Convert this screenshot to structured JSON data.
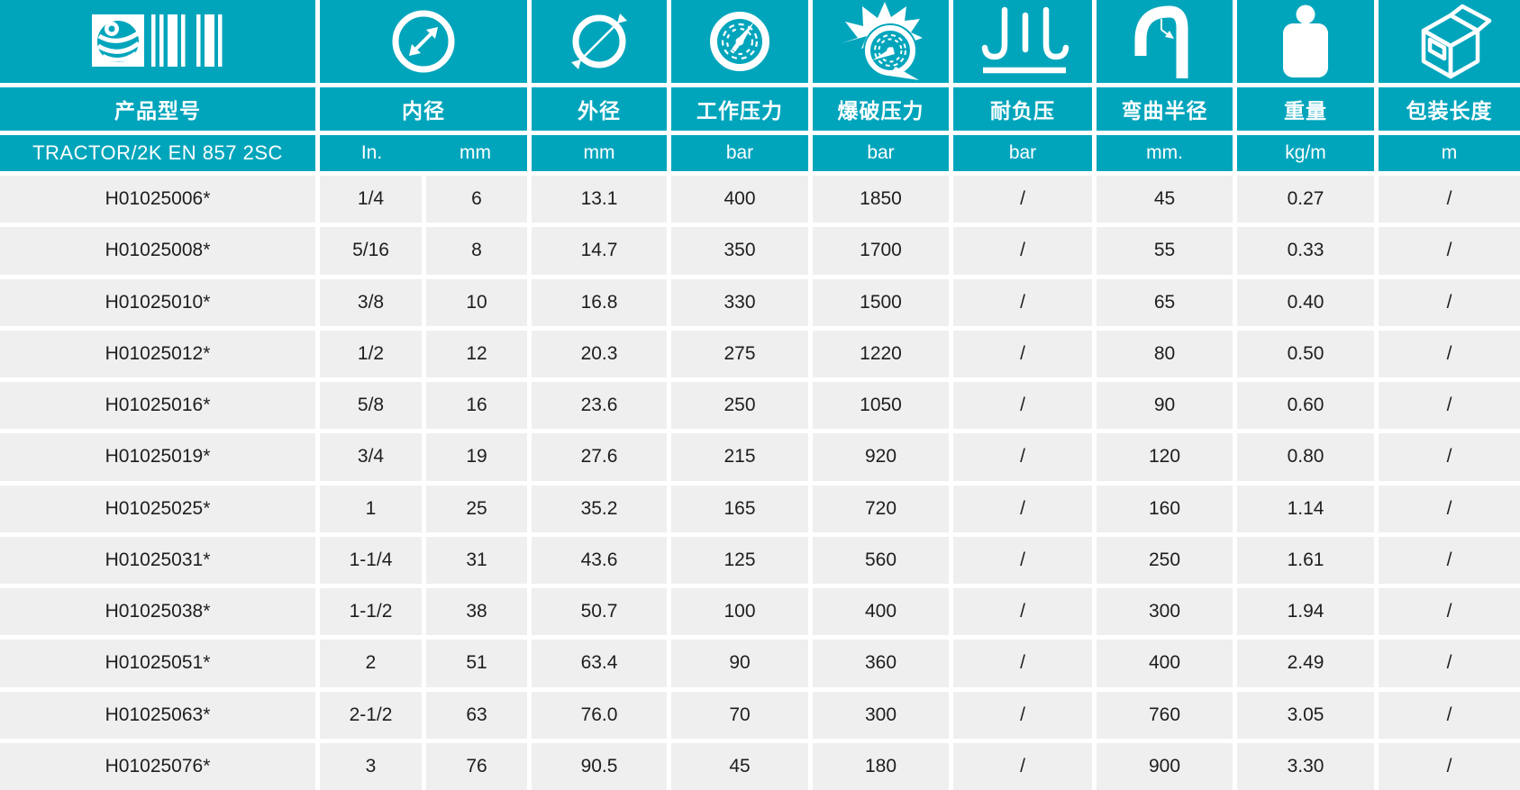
{
  "table": {
    "series_name": "TRACTOR/2K EN 857 2SC",
    "columns": [
      {
        "key": "model",
        "label": "产品型号",
        "icon": "brand-barcode-icon"
      },
      {
        "key": "inner_diameter",
        "label": "内径",
        "units": [
          "In.",
          "mm"
        ],
        "icon": "inner-diameter-icon"
      },
      {
        "key": "outer_diameter",
        "label": "外径",
        "unit": "mm",
        "icon": "outer-diameter-icon"
      },
      {
        "key": "working_pressure",
        "label": "工作压力",
        "unit": "bar",
        "icon": "pressure-gauge-icon"
      },
      {
        "key": "burst_pressure",
        "label": "爆破压力",
        "unit": "bar",
        "icon": "burst-gauge-icon"
      },
      {
        "key": "vacuum_resistance",
        "label": "耐负压",
        "unit": "bar",
        "icon": "vacuum-icon"
      },
      {
        "key": "bend_radius",
        "label": "弯曲半径",
        "unit": "mm.",
        "icon": "bend-radius-icon"
      },
      {
        "key": "weight",
        "label": "重量",
        "unit": "kg/m",
        "icon": "weight-icon"
      },
      {
        "key": "package_length",
        "label": "包装长度",
        "unit": "m",
        "icon": "package-box-icon"
      }
    ],
    "rows": [
      [
        "H01025006*",
        "1/4",
        "6",
        "13.1",
        "400",
        "1850",
        "/",
        "45",
        "0.27",
        "/"
      ],
      [
        "H01025008*",
        "5/16",
        "8",
        "14.7",
        "350",
        "1700",
        "/",
        "55",
        "0.33",
        "/"
      ],
      [
        "H01025010*",
        "3/8",
        "10",
        "16.8",
        "330",
        "1500",
        "/",
        "65",
        "0.40",
        "/"
      ],
      [
        "H01025012*",
        "1/2",
        "12",
        "20.3",
        "275",
        "1220",
        "/",
        "80",
        "0.50",
        "/"
      ],
      [
        "H01025016*",
        "5/8",
        "16",
        "23.6",
        "250",
        "1050",
        "/",
        "90",
        "0.60",
        "/"
      ],
      [
        "H01025019*",
        "3/4",
        "19",
        "27.6",
        "215",
        "920",
        "/",
        "120",
        "0.80",
        "/"
      ],
      [
        "H01025025*",
        "1",
        "25",
        "35.2",
        "165",
        "720",
        "/",
        "160",
        "1.14",
        "/"
      ],
      [
        "H01025031*",
        "1-1/4",
        "31",
        "43.6",
        "125",
        "560",
        "/",
        "250",
        "1.61",
        "/"
      ],
      [
        "H01025038*",
        "1-1/2",
        "38",
        "50.7",
        "100",
        "400",
        "/",
        "300",
        "1.94",
        "/"
      ],
      [
        "H01025051*",
        "2",
        "51",
        "63.4",
        "90",
        "360",
        "/",
        "400",
        "2.49",
        "/"
      ],
      [
        "H01025063*",
        "2-1/2",
        "63",
        "76.0",
        "70",
        "300",
        "/",
        "760",
        "3.05",
        "/"
      ],
      [
        "H01025076*",
        "3",
        "76",
        "90.5",
        "45",
        "180",
        "/",
        "900",
        "3.30",
        "/"
      ]
    ]
  },
  "colors": {
    "teal": "#00A5BC",
    "row_background": "#EFEFEF",
    "text": "#1E1E1E",
    "divider": "#FFFFFF"
  }
}
